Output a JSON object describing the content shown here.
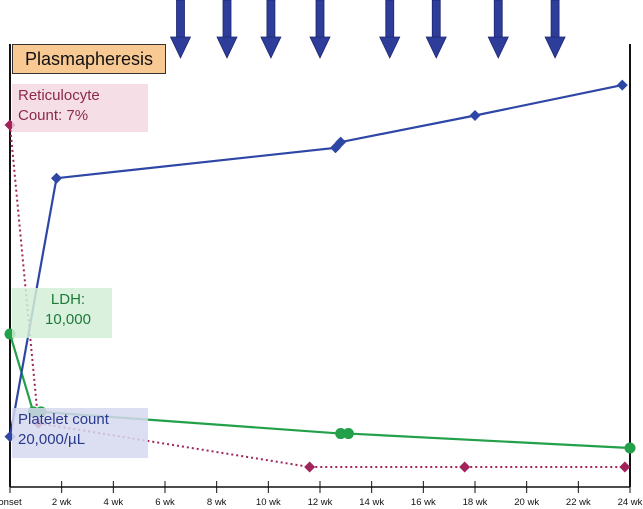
{
  "chart_data": {
    "type": "line",
    "title": "",
    "x_tick_labels": [
      "onset",
      "2 wk",
      "4 wk",
      "6 wk",
      "8 wk",
      "10 wk",
      "12 wk",
      "14 wk",
      "16 wk",
      "18 wk",
      "20 wk",
      "22 wk",
      "24 wk"
    ],
    "xlim": [
      0,
      24
    ],
    "ylim": [
      0,
      100
    ],
    "treatment": {
      "label": "Plasmapheresis",
      "weeks": [
        6.6,
        8.4,
        10.1,
        12,
        14.7,
        16.5,
        18.9,
        21.1
      ]
    },
    "series": [
      {
        "name": "Platelet count",
        "label_lines": [
          "Platelet count",
          "20,000/µL"
        ],
        "color": "#2e46a6",
        "marker": "diamond",
        "line_style": "solid",
        "x": [
          0,
          1.8,
          12.6,
          12.8,
          18,
          23.7
        ],
        "y": [
          3,
          71,
          79,
          80.5,
          87.5,
          95.5
        ]
      },
      {
        "name": "LDH",
        "label_lines": [
          "LDH:",
          "10,000"
        ],
        "color": "#22a04a",
        "marker": "circle",
        "line_style": "solid",
        "x": [
          0,
          0.9,
          1.2,
          12.8,
          13.1,
          24
        ],
        "y": [
          30,
          9.5,
          9.5,
          3.8,
          3.8,
          0
        ]
      },
      {
        "name": "Reticulocyte",
        "label_lines": [
          "Reticulocyte",
          "Count: 7%"
        ],
        "color": "#a0245a",
        "marker": "diamond",
        "line_style": "dotted",
        "x": [
          0,
          1.1,
          11.6,
          17.6,
          23.8
        ],
        "y": [
          85,
          6.5,
          -5,
          -5,
          -5
        ]
      }
    ]
  }
}
